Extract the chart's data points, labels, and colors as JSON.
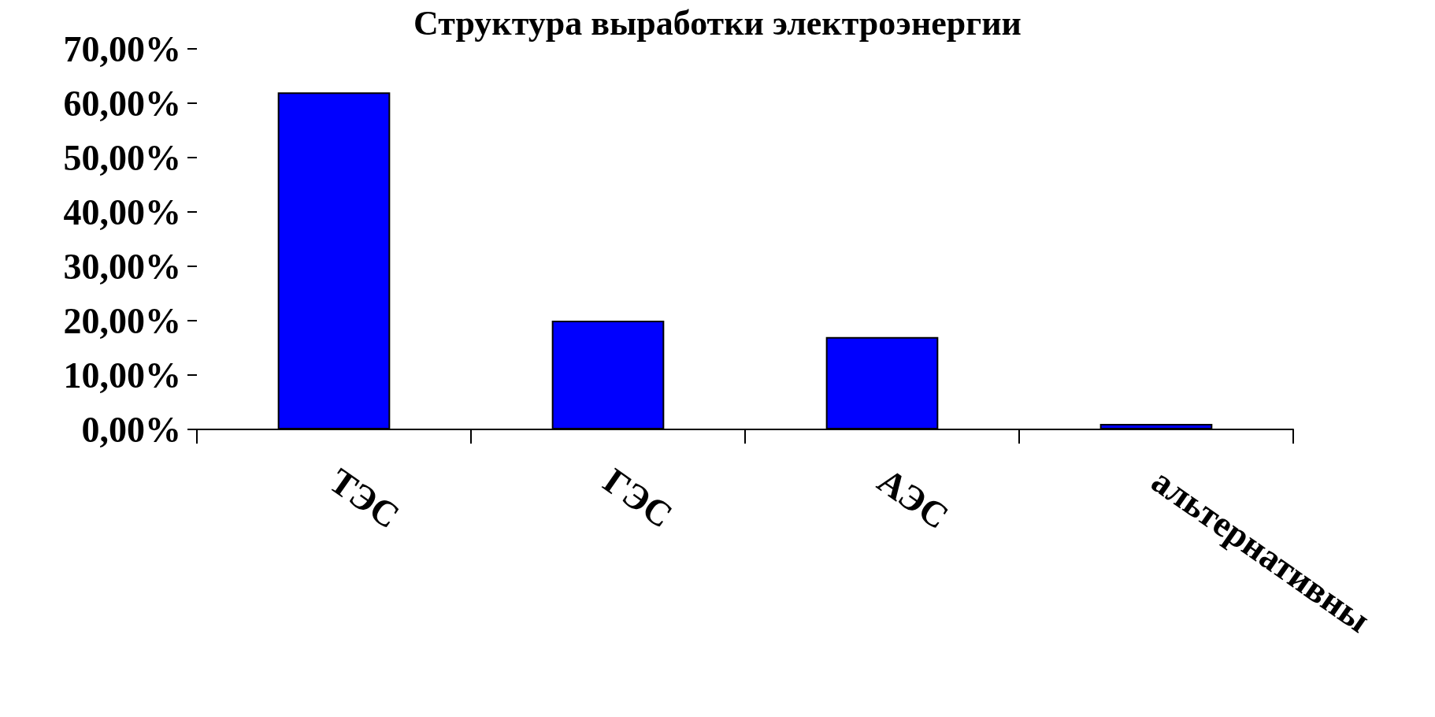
{
  "chart_data": {
    "type": "bar",
    "title": "Структура выработки электроэнергии",
    "categories": [
      "ТЭС",
      "ГЭС",
      "АЭС",
      "альтернативны"
    ],
    "values": [
      62,
      20,
      17,
      1
    ],
    "color": "#0000ff",
    "ylim": [
      0,
      70
    ],
    "yticks": [
      {
        "value": 0,
        "label": "0,00%"
      },
      {
        "value": 10,
        "label": "10,00%"
      },
      {
        "value": 20,
        "label": "20,00%"
      },
      {
        "value": 30,
        "label": "30,00%"
      },
      {
        "value": 40,
        "label": "40,00%"
      },
      {
        "value": 50,
        "label": "50,00%"
      },
      {
        "value": 60,
        "label": "60,00%"
      },
      {
        "value": 70,
        "label": "70,00%"
      }
    ],
    "grid": false
  }
}
